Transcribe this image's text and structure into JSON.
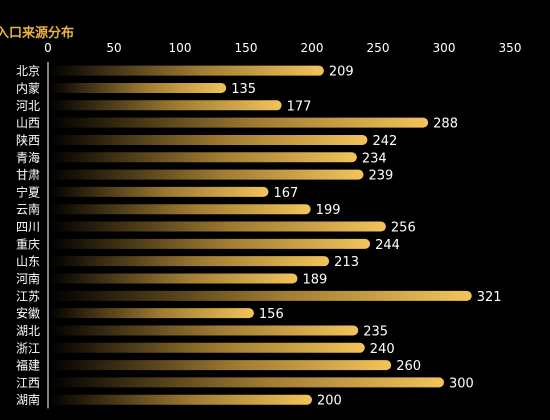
{
  "chart_data": {
    "type": "bar",
    "orientation": "horizontal",
    "title": "入口来源分布",
    "xlabel": "",
    "ylabel": "",
    "xlim": [
      0,
      350
    ],
    "x_ticks": [
      0,
      50,
      100,
      150,
      200,
      250,
      300,
      350
    ],
    "grid": false,
    "legend": "none",
    "categories": [
      "北京",
      "内蒙",
      "河北",
      "山西",
      "陕西",
      "青海",
      "甘肃",
      "宁夏",
      "云南",
      "四川",
      "重庆",
      "山东",
      "河南",
      "江苏",
      "安徽",
      "湖北",
      "浙江",
      "福建",
      "江西",
      "湖南"
    ],
    "values": [
      209,
      135,
      177,
      288,
      242,
      234,
      239,
      167,
      199,
      256,
      244,
      213,
      189,
      321,
      156,
      235,
      240,
      260,
      300,
      200
    ],
    "colors": {
      "background": "#000000",
      "bar_start": "#000000",
      "bar_mid": "#a07c32",
      "bar_end": "#f2c45a",
      "text": "#ffffff",
      "title": "#e8b23e",
      "axis": "#ffffff"
    }
  }
}
